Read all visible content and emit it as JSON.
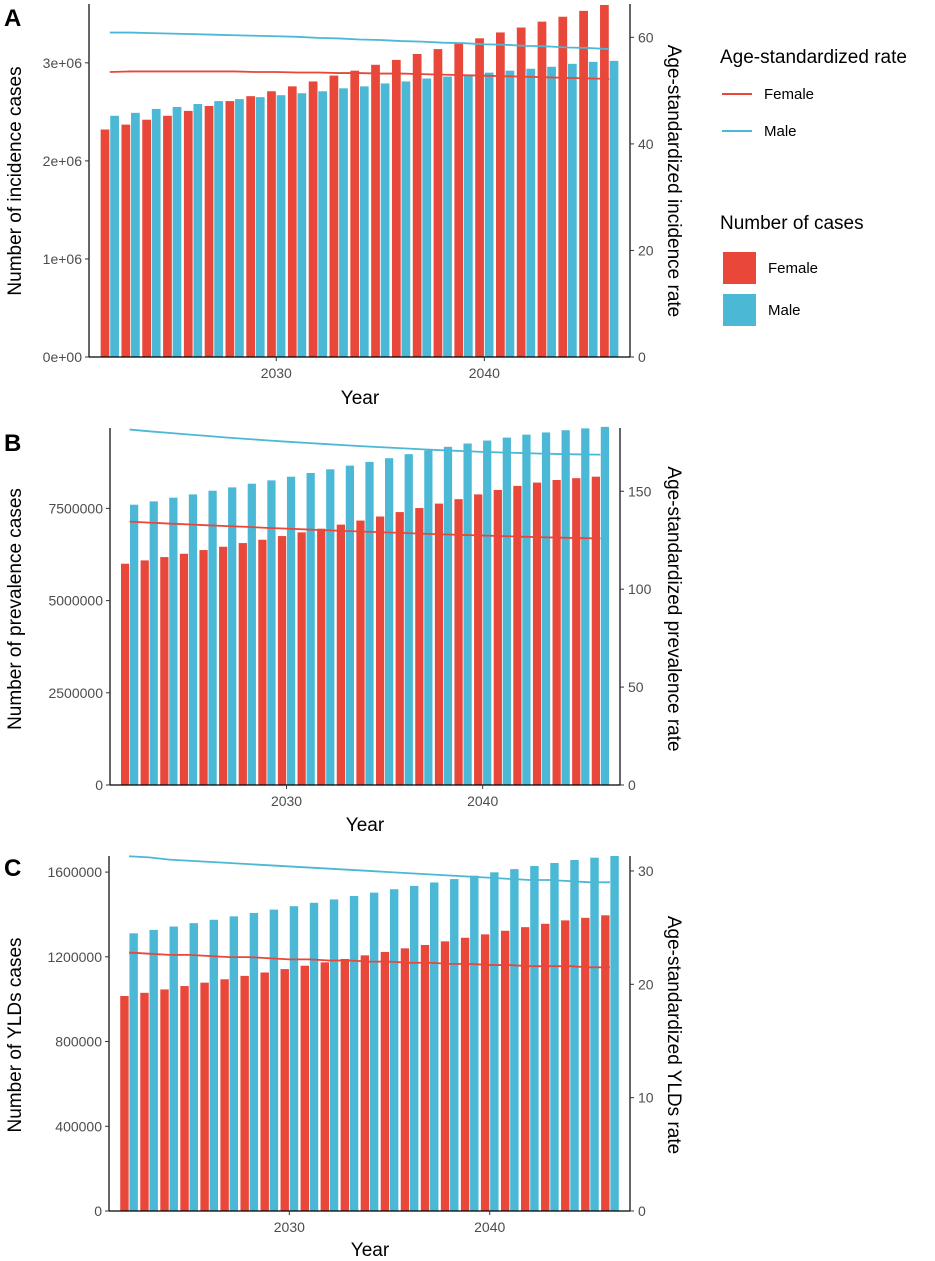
{
  "colors": {
    "female": "#e8473a",
    "male": "#4bb8d6"
  },
  "legend": {
    "rate_title": "Age-standardized rate",
    "cases_title": "Number of cases",
    "female_label": "Female",
    "male_label": "Male"
  },
  "chart_data": [
    {
      "panel": "A",
      "type": "bar+line",
      "xlabel": "Year",
      "ylabel": "Number of incidence cases",
      "y2label": "Age-standardized incidence rate",
      "x_ticks": [
        2030,
        2040
      ],
      "y_ticks": [
        "0e+00",
        "1e+06",
        "2e+06",
        "3e+06"
      ],
      "y_tick_values": [
        0,
        1000000,
        2000000,
        3000000
      ],
      "y2_ticks": [
        "0",
        "20",
        "40",
        "60"
      ],
      "y2_tick_values": [
        0,
        20,
        40,
        60
      ],
      "ylim": [
        0,
        3600000
      ],
      "y2lim": [
        0,
        66.26
      ],
      "xlim": [
        2021,
        2047
      ],
      "years": [
        2022,
        2023,
        2024,
        2025,
        2026,
        2027,
        2028,
        2029,
        2030,
        2031,
        2032,
        2033,
        2034,
        2035,
        2036,
        2037,
        2038,
        2039,
        2040,
        2041,
        2042,
        2043,
        2044,
        2045,
        2046
      ],
      "bar_series": [
        {
          "name": "Female",
          "values": [
            2320000,
            2370000,
            2420000,
            2460000,
            2510000,
            2560000,
            2610000,
            2660000,
            2710000,
            2760000,
            2810000,
            2870000,
            2920000,
            2980000,
            3030000,
            3090000,
            3140000,
            3200000,
            3250000,
            3310000,
            3360000,
            3420000,
            3470000,
            3530000,
            3590000
          ]
        },
        {
          "name": "Male",
          "values": [
            2460000,
            2490000,
            2530000,
            2550000,
            2580000,
            2610000,
            2630000,
            2650000,
            2670000,
            2690000,
            2710000,
            2740000,
            2760000,
            2790000,
            2810000,
            2840000,
            2860000,
            2880000,
            2900000,
            2920000,
            2940000,
            2960000,
            2990000,
            3010000,
            3020000
          ]
        }
      ],
      "line_series": [
        {
          "name": "Female",
          "values": [
            53.5,
            53.6,
            53.6,
            53.6,
            53.6,
            53.6,
            53.6,
            53.5,
            53.5,
            53.4,
            53.4,
            53.3,
            53.3,
            53.2,
            53.2,
            53.1,
            53.0,
            52.9,
            52.8,
            52.7,
            52.6,
            52.5,
            52.4,
            52.3,
            52.2
          ]
        },
        {
          "name": "Male",
          "values": [
            60.9,
            60.9,
            60.8,
            60.7,
            60.6,
            60.5,
            60.4,
            60.3,
            60.2,
            60.1,
            59.9,
            59.8,
            59.6,
            59.5,
            59.3,
            59.2,
            59.0,
            58.9,
            58.7,
            58.6,
            58.4,
            58.3,
            58.1,
            58.0,
            57.8
          ]
        }
      ]
    },
    {
      "panel": "B",
      "type": "bar+line",
      "xlabel": "Year",
      "ylabel": "Number of prevalence cases",
      "y2label": "Age-standardized prevalence rate",
      "x_ticks": [
        2030,
        2040
      ],
      "y_ticks": [
        "0",
        "2500000",
        "5000000",
        "7500000"
      ],
      "y_tick_values": [
        0,
        2500000,
        5000000,
        7500000
      ],
      "y2_ticks": [
        "0",
        "50",
        "100",
        "150"
      ],
      "y2_tick_values": [
        0,
        50,
        100,
        150
      ],
      "ylim": [
        0,
        9680000
      ],
      "y2lim": [
        0,
        182.3
      ],
      "xlim": [
        2021,
        2047
      ],
      "years": [
        2022,
        2023,
        2024,
        2025,
        2026,
        2027,
        2028,
        2029,
        2030,
        2031,
        2032,
        2033,
        2034,
        2035,
        2036,
        2037,
        2038,
        2039,
        2040,
        2041,
        2042,
        2043,
        2044,
        2045,
        2046
      ],
      "bar_series": [
        {
          "name": "Female",
          "values": [
            6000000,
            6090000,
            6180000,
            6270000,
            6370000,
            6460000,
            6560000,
            6650000,
            6750000,
            6850000,
            6950000,
            7060000,
            7170000,
            7280000,
            7400000,
            7510000,
            7630000,
            7750000,
            7880000,
            8000000,
            8110000,
            8200000,
            8270000,
            8320000,
            8360000
          ]
        },
        {
          "name": "Male",
          "values": [
            7600000,
            7690000,
            7790000,
            7880000,
            7980000,
            8070000,
            8170000,
            8260000,
            8360000,
            8460000,
            8560000,
            8660000,
            8760000,
            8860000,
            8970000,
            9070000,
            9170000,
            9260000,
            9340000,
            9420000,
            9500000,
            9560000,
            9620000,
            9670000,
            9710000
          ]
        }
      ],
      "line_series": [
        {
          "name": "Female",
          "values": [
            134.5,
            134.0,
            133.5,
            133.1,
            132.6,
            132.2,
            131.8,
            131.3,
            130.9,
            130.5,
            130.1,
            129.7,
            129.4,
            129.0,
            128.7,
            128.3,
            128.0,
            127.7,
            127.4,
            127.1,
            126.8,
            126.5,
            126.3,
            126.1,
            125.9
          ]
        },
        {
          "name": "Male",
          "values": [
            181.5,
            180.6,
            179.8,
            179.0,
            178.2,
            177.4,
            176.7,
            176.0,
            175.3,
            174.7,
            174.1,
            173.5,
            172.9,
            172.4,
            171.9,
            171.4,
            170.9,
            170.5,
            170.1,
            169.8,
            169.5,
            169.2,
            169.0,
            168.8,
            168.7
          ]
        }
      ]
    },
    {
      "panel": "C",
      "type": "bar+line",
      "xlabel": "Year",
      "ylabel": "Number of YLDs cases",
      "y2label": "Age-standardized YLDs rate",
      "x_ticks": [
        2030,
        2040
      ],
      "y_ticks": [
        "0",
        "400000",
        "800000",
        "1200000",
        "1600000"
      ],
      "y_tick_values": [
        0,
        400000,
        800000,
        1200000,
        1600000
      ],
      "y2_ticks": [
        "0",
        "10",
        "20",
        "30"
      ],
      "y2_tick_values": [
        0,
        10,
        20,
        30
      ],
      "ylim": [
        0,
        1676000
      ],
      "y2lim": [
        0,
        31.32
      ],
      "xlim": [
        2021,
        2047
      ],
      "years": [
        2022,
        2023,
        2024,
        2025,
        2026,
        2027,
        2028,
        2029,
        2030,
        2031,
        2032,
        2033,
        2034,
        2035,
        2036,
        2037,
        2038,
        2039,
        2040,
        2041,
        2042,
        2043,
        2044,
        2045,
        2046
      ],
      "bar_series": [
        {
          "name": "Female",
          "values": [
            1015000,
            1030000,
            1046000,
            1062000,
            1078000,
            1094000,
            1110000,
            1126000,
            1142000,
            1158000,
            1174000,
            1190000,
            1207000,
            1223000,
            1240000,
            1256000,
            1273000,
            1290000,
            1306000,
            1323000,
            1340000,
            1356000,
            1372000,
            1384000,
            1396000
          ]
        },
        {
          "name": "Male",
          "values": [
            1311000,
            1327000,
            1343000,
            1359000,
            1375000,
            1391000,
            1407000,
            1423000,
            1439000,
            1455000,
            1471000,
            1487000,
            1503000,
            1519000,
            1535000,
            1551000,
            1567000,
            1583000,
            1599000,
            1614000,
            1629000,
            1643000,
            1657000,
            1668000,
            1676000
          ]
        }
      ],
      "line_series": [
        {
          "name": "Female",
          "values": [
            22.8,
            22.7,
            22.6,
            22.6,
            22.5,
            22.4,
            22.4,
            22.3,
            22.2,
            22.2,
            22.1,
            22.1,
            22.0,
            22.0,
            21.9,
            21.9,
            21.8,
            21.8,
            21.7,
            21.7,
            21.6,
            21.6,
            21.6,
            21.5,
            21.5
          ]
        },
        {
          "name": "Male",
          "values": [
            31.3,
            31.2,
            31.0,
            30.9,
            30.8,
            30.7,
            30.6,
            30.5,
            30.4,
            30.3,
            30.2,
            30.1,
            30.0,
            29.9,
            29.8,
            29.7,
            29.6,
            29.5,
            29.4,
            29.3,
            29.2,
            29.2,
            29.1,
            29.0,
            29.0
          ]
        }
      ]
    }
  ]
}
